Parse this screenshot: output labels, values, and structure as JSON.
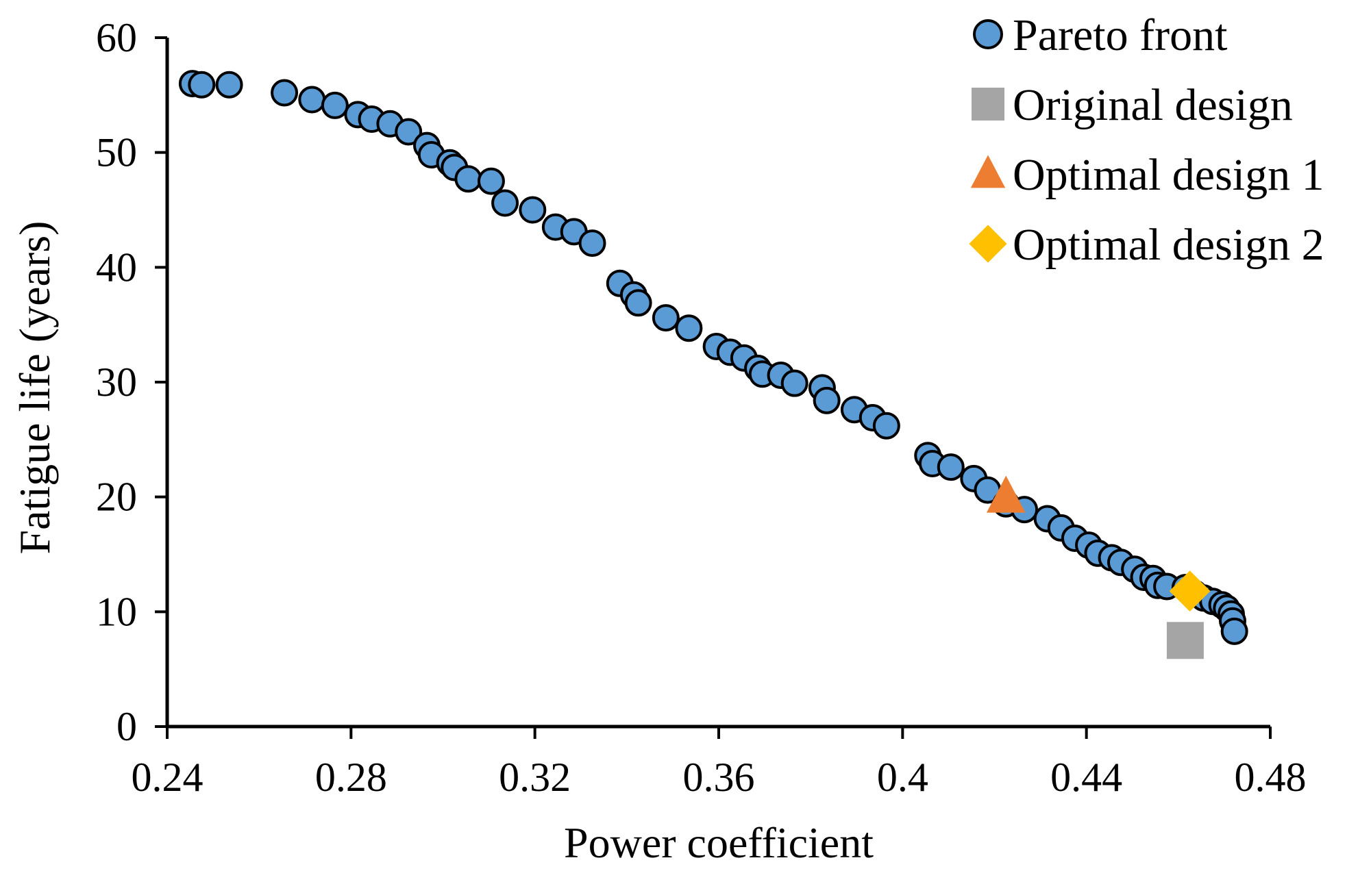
{
  "chart_data": {
    "type": "scatter",
    "title": "",
    "xlabel": "Power coefficient",
    "ylabel": "Fatigue life (years)",
    "xlim": [
      0.24,
      0.48
    ],
    "ylim": [
      0,
      60
    ],
    "xticks": [
      0.24,
      0.28,
      0.32,
      0.36,
      0.4,
      0.44,
      0.48
    ],
    "xtick_labels": [
      "0.24",
      "0.28",
      "0.32",
      "0.36",
      "0.4",
      "0.44",
      "0.48"
    ],
    "yticks": [
      0,
      10,
      20,
      30,
      40,
      50,
      60
    ],
    "ytick_labels": [
      "0",
      "10",
      "20",
      "30",
      "40",
      "50",
      "60"
    ],
    "grid": false,
    "legend_position": "top-right",
    "series": [
      {
        "name": "Pareto front",
        "marker": "circle",
        "color": "#5B9BD5",
        "edge_color": "#000000",
        "x": [
          0.2455,
          0.2475,
          0.2535,
          0.2655,
          0.2715,
          0.2765,
          0.2815,
          0.2845,
          0.2885,
          0.2925,
          0.2965,
          0.2975,
          0.3015,
          0.3025,
          0.3055,
          0.3105,
          0.3135,
          0.3195,
          0.3245,
          0.3285,
          0.3325,
          0.3385,
          0.3415,
          0.3425,
          0.3485,
          0.3535,
          0.3595,
          0.3625,
          0.3655,
          0.3685,
          0.3695,
          0.3735,
          0.3765,
          0.3825,
          0.3835,
          0.3895,
          0.3935,
          0.3965,
          0.4055,
          0.4065,
          0.4105,
          0.4155,
          0.4185,
          0.4225,
          0.4265,
          0.4315,
          0.4345,
          0.4375,
          0.4405,
          0.4425,
          0.4455,
          0.4475,
          0.4505,
          0.4525,
          0.4545,
          0.4555,
          0.4575,
          0.4615,
          0.4635,
          0.4655,
          0.4675,
          0.4695,
          0.4705,
          0.4715,
          0.4718,
          0.4722
        ],
        "y": [
          56.0,
          55.9,
          55.9,
          55.2,
          54.6,
          54.1,
          53.3,
          52.9,
          52.5,
          51.8,
          50.6,
          49.8,
          49.1,
          48.7,
          47.7,
          47.5,
          45.6,
          45.0,
          43.5,
          43.1,
          42.1,
          38.6,
          37.6,
          36.9,
          35.6,
          34.7,
          33.1,
          32.6,
          32.1,
          31.2,
          30.7,
          30.6,
          29.9,
          29.5,
          28.4,
          27.6,
          26.9,
          26.2,
          23.6,
          22.9,
          22.6,
          21.6,
          20.6,
          19.4,
          18.9,
          18.1,
          17.3,
          16.4,
          15.8,
          15.1,
          14.7,
          14.3,
          13.7,
          13.0,
          12.9,
          12.3,
          12.2,
          12.1,
          11.6,
          11.2,
          10.9,
          10.6,
          10.3,
          9.8,
          9.2,
          8.3
        ]
      },
      {
        "name": "Original design",
        "marker": "square",
        "color": "#A5A5A5",
        "x": [
          0.4615
        ],
        "y": [
          7.5
        ]
      },
      {
        "name": "Optimal design 1",
        "marker": "triangle",
        "color": "#ED7D31",
        "x": [
          0.4225
        ],
        "y": [
          20.0
        ]
      },
      {
        "name": "Optimal design 2",
        "marker": "diamond",
        "color": "#FFC000",
        "x": [
          0.4625
        ],
        "y": [
          11.8
        ]
      }
    ]
  }
}
